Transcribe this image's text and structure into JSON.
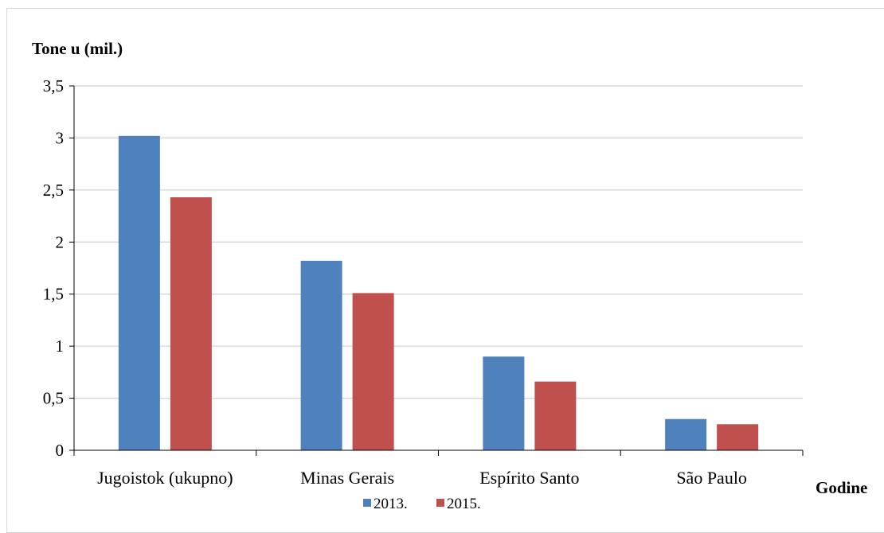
{
  "chart_data": {
    "type": "bar",
    "ylabel": "Tone u (mil.)",
    "xlabel": "Godine",
    "categories": [
      "Jugoistok (ukupno)",
      "Minas Gerais",
      "Espírito Santo",
      "São Paulo"
    ],
    "series": [
      {
        "name": "2013.",
        "color": "#4F81BD",
        "values": [
          3.02,
          1.82,
          0.9,
          0.3
        ]
      },
      {
        "name": "2015.",
        "color": "#C0504D",
        "values": [
          2.43,
          1.51,
          0.66,
          0.25
        ]
      }
    ],
    "ylim": [
      0,
      3.5
    ],
    "yticks": [
      0,
      0.5,
      1,
      1.5,
      2,
      2.5,
      3,
      3.5
    ],
    "ytick_labels": [
      "0",
      "0,5",
      "1",
      "1,5",
      "2",
      "2,5",
      "3",
      "3,5"
    ],
    "grid": true,
    "legend_position": "bottom"
  }
}
